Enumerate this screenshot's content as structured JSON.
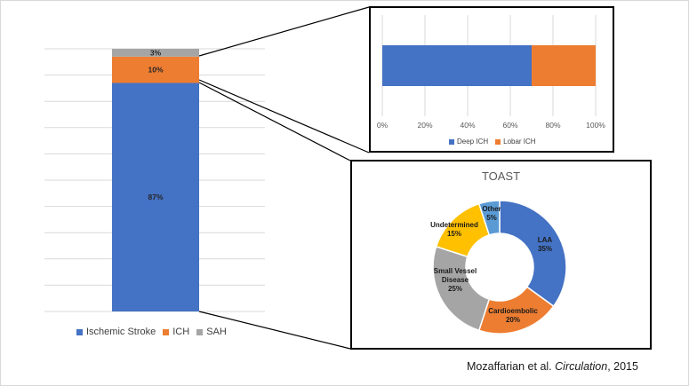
{
  "charts": [
    {
      "id": "stroke-type",
      "type": "bar",
      "stacked": true,
      "title": "",
      "series": [
        {
          "name": "Ischemic Stroke",
          "value": 87,
          "label": "87%",
          "color": "#4472C4"
        },
        {
          "name": "ICH",
          "value": 10,
          "label": "10%",
          "color": "#ED7D31"
        },
        {
          "name": "SAH",
          "value": 3,
          "label": "3%",
          "color": "#A5A5A5"
        }
      ],
      "ylim": [
        0,
        100
      ],
      "legend": [
        "Ischemic Stroke",
        "ICH",
        "SAH"
      ]
    },
    {
      "id": "ich-location",
      "type": "bar",
      "orientation": "horizontal",
      "stacked": true,
      "series": [
        {
          "name": "Deep ICH",
          "value": 70,
          "color": "#4472C4"
        },
        {
          "name": "Lobar ICH",
          "value": 30,
          "color": "#ED7D31"
        }
      ],
      "xlim": [
        0,
        100
      ],
      "ticks": [
        "0%",
        "20%",
        "40%",
        "60%",
        "80%",
        "100%"
      ],
      "legend": [
        "Deep ICH",
        "Lobar ICH"
      ]
    },
    {
      "id": "toast",
      "type": "pie",
      "donut": true,
      "title": "TOAST",
      "slices": [
        {
          "name": "LAA",
          "value": 35,
          "label": [
            "LAA",
            "35%"
          ],
          "color": "#4472C4"
        },
        {
          "name": "Cardioembolic",
          "value": 20,
          "label": [
            "Cardioembolic",
            "20%"
          ],
          "color": "#ED7D31"
        },
        {
          "name": "Small Vessel Disease",
          "value": 25,
          "label": [
            "Small Vessel",
            "Disease",
            "25%"
          ],
          "color": "#A5A5A5"
        },
        {
          "name": "Undetermined",
          "value": 15,
          "label": [
            "Undetermined",
            "15%"
          ],
          "color": "#FFC000"
        },
        {
          "name": "Other",
          "value": 5,
          "label": [
            "Other",
            "5%"
          ],
          "color": "#5B9BD5"
        }
      ]
    }
  ],
  "citation": {
    "authors": "Mozaffarian et al. ",
    "journal": "Circulation",
    "year": ", 2015"
  }
}
